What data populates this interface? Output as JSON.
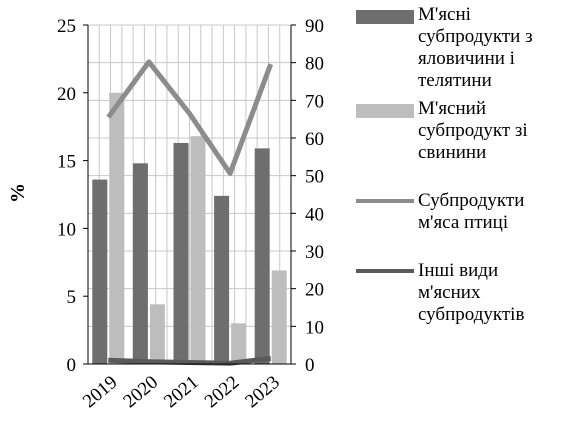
{
  "chart_data": {
    "type": "bar",
    "categories": [
      "2019",
      "2020",
      "2021",
      "2022",
      "2023"
    ],
    "ylabel": "%",
    "ylim": [
      0,
      25
    ],
    "yticks": [
      "0",
      "5",
      "10",
      "15",
      "20",
      "25"
    ],
    "y2lim": [
      0,
      90
    ],
    "y2ticks": [
      "0",
      "10",
      "20",
      "30",
      "40",
      "50",
      "60",
      "70",
      "80",
      "90"
    ],
    "grid": true,
    "legend_position": "right",
    "series": [
      {
        "name": "М'ясні субпродукти з яловичини і телятини",
        "kind": "bar",
        "axis": "left",
        "color": "#6e6e6e",
        "values": [
          13.6,
          14.8,
          16.3,
          12.4,
          15.9
        ]
      },
      {
        "name": "М'ясний субпродукт зі свинини",
        "kind": "bar",
        "axis": "left",
        "color": "#bdbdbd",
        "values": [
          20.0,
          4.4,
          16.8,
          3.0,
          6.9
        ]
      },
      {
        "name": "Субпродукти м'яса птиці",
        "kind": "line",
        "axis": "right",
        "color": "#8c8c8c",
        "values": [
          65.5,
          80.2,
          66.5,
          50.6,
          79.6
        ]
      },
      {
        "name": "Інші види м'ясних субпродуктів",
        "kind": "line",
        "axis": "right",
        "color": "#5a5a5a",
        "values": [
          1.0,
          0.6,
          0.4,
          0.2,
          1.5
        ]
      }
    ]
  }
}
